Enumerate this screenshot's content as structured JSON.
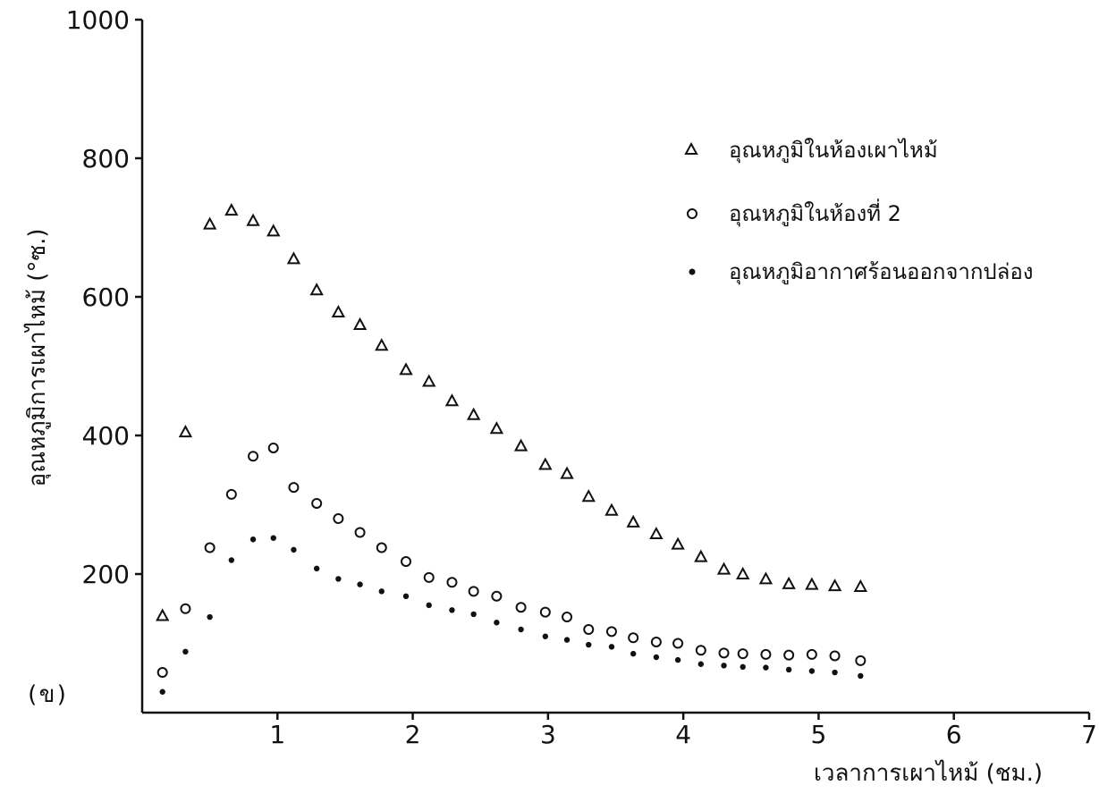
{
  "chart_data": {
    "type": "scatter",
    "panel_label": "(ข)",
    "xlabel": "เวลาการเผาไหม้ (ชม.)",
    "ylabel": "อุณหภูมิการเผาไหม้ (°ซ.)",
    "xlim": [
      0,
      7
    ],
    "ylim": [
      0,
      1000
    ],
    "x_ticks": [
      {
        "value": 1,
        "label": "1"
      },
      {
        "value": 2,
        "label": "2"
      },
      {
        "value": 3,
        "label": "3"
      },
      {
        "value": 4,
        "label": "4"
      },
      {
        "value": 5,
        "label": "5"
      },
      {
        "value": 6,
        "label": "6"
      },
      {
        "value": 7,
        "label": "7"
      }
    ],
    "y_ticks": [
      {
        "value": 200,
        "label": "200"
      },
      {
        "value": 400,
        "label": "400"
      },
      {
        "value": 600,
        "label": "600"
      },
      {
        "value": 800,
        "label": "800"
      },
      {
        "value": 1000,
        "label": "1000"
      }
    ],
    "legend_position": "top-right",
    "grid": false,
    "series": [
      {
        "name": "อุณหภูมิในห้องเผาไหม้",
        "marker": "triangle",
        "x": [
          0.15,
          0.32,
          0.5,
          0.66,
          0.82,
          0.97,
          1.12,
          1.29,
          1.45,
          1.61,
          1.77,
          1.95,
          2.12,
          2.29,
          2.45,
          2.62,
          2.8,
          2.98,
          3.14,
          3.3,
          3.47,
          3.63,
          3.8,
          3.96,
          4.13,
          4.3,
          4.44,
          4.61,
          4.78,
          4.95,
          5.12,
          5.31
        ],
        "y": [
          140,
          405,
          705,
          725,
          710,
          695,
          655,
          610,
          578,
          560,
          530,
          495,
          478,
          450,
          430,
          410,
          385,
          358,
          345,
          312,
          292,
          275,
          258,
          243,
          225,
          207,
          200,
          193,
          186,
          185,
          183,
          182
        ]
      },
      {
        "name": "อุณหภูมิในห้องที่ 2",
        "marker": "circle",
        "x": [
          0.15,
          0.32,
          0.5,
          0.66,
          0.82,
          0.97,
          1.12,
          1.29,
          1.45,
          1.61,
          1.77,
          1.95,
          2.12,
          2.29,
          2.45,
          2.62,
          2.8,
          2.98,
          3.14,
          3.3,
          3.47,
          3.63,
          3.8,
          3.96,
          4.13,
          4.3,
          4.44,
          4.61,
          4.78,
          4.95,
          5.12,
          5.31
        ],
        "y": [
          58,
          150,
          238,
          315,
          370,
          382,
          325,
          302,
          280,
          260,
          238,
          218,
          195,
          188,
          175,
          168,
          152,
          145,
          138,
          120,
          117,
          108,
          102,
          100,
          90,
          86,
          85,
          84,
          83,
          84,
          82,
          75
        ]
      },
      {
        "name": "อุณหภูมิอากาศร้อนออกจากปล่อง",
        "marker": "dot",
        "x": [
          0.15,
          0.32,
          0.5,
          0.66,
          0.82,
          0.97,
          1.12,
          1.29,
          1.45,
          1.61,
          1.77,
          1.95,
          2.12,
          2.29,
          2.45,
          2.62,
          2.8,
          2.98,
          3.14,
          3.3,
          3.47,
          3.63,
          3.8,
          3.96,
          4.13,
          4.3,
          4.44,
          4.61,
          4.78,
          4.95,
          5.12,
          5.31
        ],
        "y": [
          30,
          88,
          138,
          220,
          250,
          252,
          235,
          208,
          193,
          185,
          175,
          168,
          155,
          148,
          142,
          130,
          120,
          110,
          105,
          98,
          95,
          85,
          80,
          76,
          70,
          68,
          66,
          65,
          62,
          60,
          58,
          53
        ]
      }
    ]
  }
}
